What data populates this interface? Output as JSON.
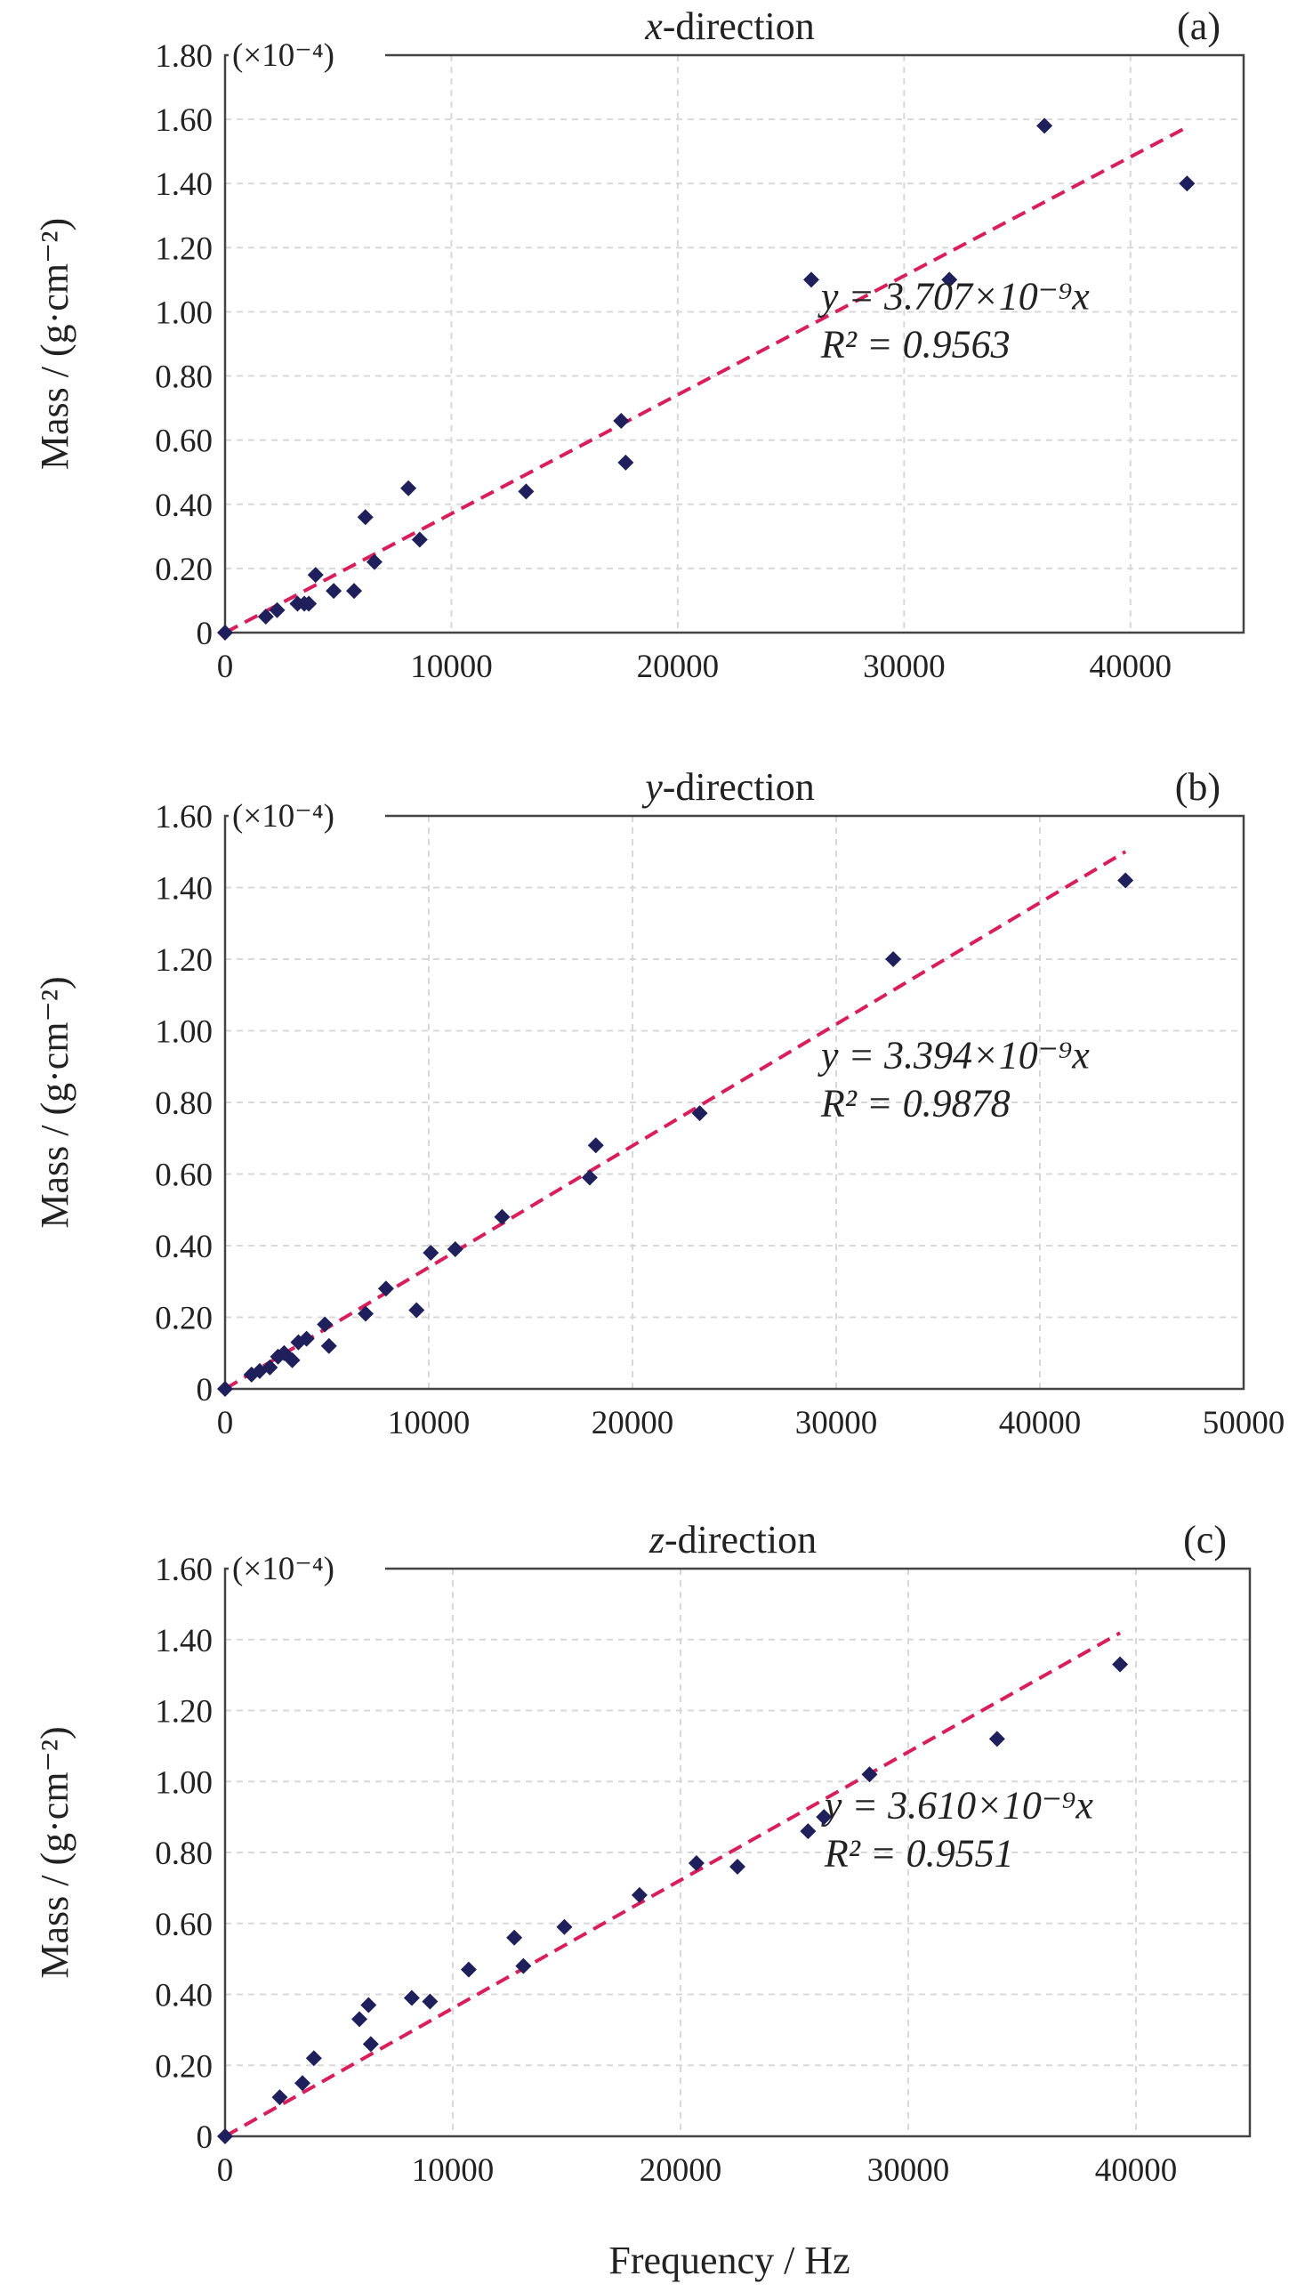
{
  "figure": {
    "xlabel": "Frequency / Hz"
  },
  "chart_data": [
    {
      "type": "scatter",
      "title": "x-direction",
      "title_italic": "x",
      "title_rest": "-direction",
      "panel_label": "(a)",
      "ylabel": "Mass / (g·cm⁻²)",
      "y_multiplier": "(×10⁻⁴)",
      "xlim": [
        0,
        45000
      ],
      "ylim": [
        0,
        1.8
      ],
      "xticks": [
        0,
        10000,
        20000,
        30000,
        40000
      ],
      "xtick_labels": [
        "0",
        "10000",
        "20000",
        "30000",
        "40000"
      ],
      "yticks": [
        0,
        0.2,
        0.4,
        0.6,
        0.8,
        1.0,
        1.2,
        1.4,
        1.6,
        1.8
      ],
      "ytick_labels": [
        "0",
        "0.20",
        "0.40",
        "0.60",
        "0.80",
        "1.00",
        "1.20",
        "1.40",
        "1.60",
        "1.80"
      ],
      "grid": true,
      "points": [
        [
          0,
          0
        ],
        [
          1800,
          0.05
        ],
        [
          2300,
          0.07
        ],
        [
          3200,
          0.09
        ],
        [
          3500,
          0.09
        ],
        [
          3700,
          0.09
        ],
        [
          4000,
          0.18
        ],
        [
          4800,
          0.13
        ],
        [
          5700,
          0.13
        ],
        [
          6200,
          0.36
        ],
        [
          6600,
          0.22
        ],
        [
          8100,
          0.45
        ],
        [
          8600,
          0.29
        ],
        [
          13300,
          0.44
        ],
        [
          17500,
          0.66
        ],
        [
          17700,
          0.53
        ],
        [
          25900,
          1.1
        ],
        [
          32000,
          1.1
        ],
        [
          36200,
          1.58
        ],
        [
          42500,
          1.4
        ]
      ],
      "fit": {
        "slope": 3.707e-05,
        "x_end": 42500
      },
      "equation": "y = 3.707×10⁻⁹x",
      "r_squared": "R² = 0.9563"
    },
    {
      "type": "scatter",
      "title": "y-direction",
      "title_italic": "y",
      "title_rest": "-direction",
      "panel_label": "(b)",
      "ylabel": "Mass / (g·cm⁻²)",
      "y_multiplier": "(×10⁻⁴)",
      "xlim": [
        0,
        50000
      ],
      "ylim": [
        0,
        1.6
      ],
      "xticks": [
        0,
        10000,
        20000,
        30000,
        40000,
        50000
      ],
      "xtick_labels": [
        "0",
        "10000",
        "20000",
        "30000",
        "40000",
        "50000"
      ],
      "yticks": [
        0,
        0.2,
        0.4,
        0.6,
        0.8,
        1.0,
        1.2,
        1.4,
        1.6
      ],
      "ytick_labels": [
        "0",
        "0.20",
        "0.40",
        "0.60",
        "0.80",
        "1.00",
        "1.20",
        "1.40",
        "1.60"
      ],
      "grid": true,
      "points": [
        [
          0,
          0
        ],
        [
          1300,
          0.04
        ],
        [
          1700,
          0.05
        ],
        [
          2200,
          0.06
        ],
        [
          2600,
          0.09
        ],
        [
          2900,
          0.1
        ],
        [
          3300,
          0.08
        ],
        [
          3600,
          0.13
        ],
        [
          4000,
          0.14
        ],
        [
          4900,
          0.18
        ],
        [
          5100,
          0.12
        ],
        [
          6900,
          0.21
        ],
        [
          7900,
          0.28
        ],
        [
          9400,
          0.22
        ],
        [
          10100,
          0.38
        ],
        [
          11300,
          0.39
        ],
        [
          13600,
          0.48
        ],
        [
          17900,
          0.59
        ],
        [
          18200,
          0.68
        ],
        [
          23300,
          0.77
        ],
        [
          32800,
          1.2
        ],
        [
          44200,
          1.42
        ]
      ],
      "fit": {
        "slope": 3.394e-05,
        "x_end": 44200
      },
      "equation": "y = 3.394×10⁻⁹x",
      "r_squared": "R² = 0.9878"
    },
    {
      "type": "scatter",
      "title": "z-direction",
      "title_italic": "z",
      "title_rest": "-direction",
      "panel_label": "(c)",
      "ylabel": "Mass / (g·cm⁻²)",
      "y_multiplier": "(×10⁻⁴)",
      "xlim": [
        0,
        45000
      ],
      "ylim": [
        0,
        1.6
      ],
      "xticks": [
        0,
        10000,
        20000,
        30000,
        40000
      ],
      "xtick_labels": [
        "0",
        "10000",
        "20000",
        "30000",
        "40000"
      ],
      "yticks": [
        0,
        0.2,
        0.4,
        0.6,
        0.8,
        1.0,
        1.2,
        1.4,
        1.6
      ],
      "ytick_labels": [
        "0",
        "0.20",
        "0.40",
        "0.60",
        "0.80",
        "1.00",
        "1.20",
        "1.40",
        "1.60"
      ],
      "grid": true,
      "points": [
        [
          0,
          0
        ],
        [
          2400,
          0.11
        ],
        [
          3400,
          0.15
        ],
        [
          3900,
          0.22
        ],
        [
          5900,
          0.33
        ],
        [
          6300,
          0.37
        ],
        [
          6400,
          0.26
        ],
        [
          8200,
          0.39
        ],
        [
          9000,
          0.38
        ],
        [
          10700,
          0.47
        ],
        [
          12700,
          0.56
        ],
        [
          13100,
          0.48
        ],
        [
          14900,
          0.59
        ],
        [
          18200,
          0.68
        ],
        [
          20700,
          0.77
        ],
        [
          22500,
          0.76
        ],
        [
          25600,
          0.86
        ],
        [
          26300,
          0.9
        ],
        [
          28300,
          1.02
        ],
        [
          33900,
          1.12
        ],
        [
          39300,
          1.33
        ]
      ],
      "fit": {
        "slope": 3.61e-05,
        "x_end": 39300
      },
      "equation": "y = 3.610×10⁻⁹x",
      "r_squared": "R² = 0.9551"
    }
  ]
}
